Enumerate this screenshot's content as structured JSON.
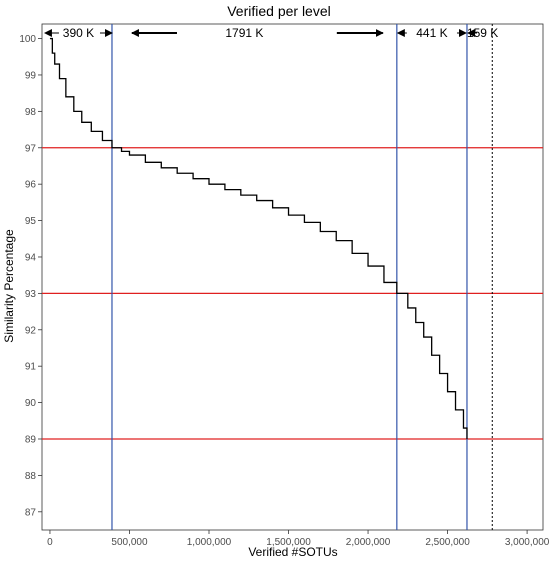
{
  "chart_data": {
    "type": "line",
    "title": "Verified per level",
    "xlabel": "Verified #SOTUs",
    "ylabel": "Similarity Percentage",
    "xlim": [
      -50000,
      3100000
    ],
    "ylim": [
      86.5,
      100.4
    ],
    "x_ticks": [
      0,
      500000,
      1000000,
      1500000,
      2000000,
      2500000,
      3000000
    ],
    "x_tick_labels": [
      "0",
      "500,000",
      "1,000,000",
      "1,500,000",
      "2,000,000",
      "2,500,000",
      "3,000,000"
    ],
    "y_ticks": [
      87,
      88,
      89,
      90,
      91,
      92,
      93,
      94,
      95,
      96,
      97,
      98,
      99,
      100
    ],
    "y_tick_labels": [
      "87",
      "88",
      "89",
      "90",
      "91",
      "92",
      "93",
      "94",
      "95",
      "96",
      "97",
      "98",
      "99",
      "100"
    ],
    "grid": false,
    "series": [
      {
        "step": true,
        "color": "#000000",
        "x": [
          0,
          15000,
          30000,
          60000,
          100000,
          150000,
          200000,
          260000,
          330000,
          390000,
          450000,
          500000,
          600000,
          700000,
          800000,
          900000,
          1000000,
          1100000,
          1200000,
          1300000,
          1400000,
          1500000,
          1600000,
          1700000,
          1800000,
          1900000,
          2000000,
          2100000,
          2181000,
          2250000,
          2300000,
          2350000,
          2400000,
          2450000,
          2500000,
          2550000,
          2600000,
          2622000
        ],
        "y": [
          100.0,
          99.6,
          99.3,
          98.9,
          98.4,
          98.0,
          97.7,
          97.45,
          97.2,
          97.0,
          96.9,
          96.8,
          96.6,
          96.45,
          96.3,
          96.15,
          96.0,
          95.85,
          95.7,
          95.55,
          95.35,
          95.15,
          94.95,
          94.7,
          94.45,
          94.1,
          93.75,
          93.3,
          93.0,
          92.6,
          92.2,
          91.8,
          91.3,
          90.8,
          90.3,
          89.8,
          89.3,
          89.0
        ]
      }
    ],
    "hlines": [
      {
        "y": 97,
        "color": "#e02020"
      },
      {
        "y": 93,
        "color": "#e02020"
      },
      {
        "y": 89,
        "color": "#e02020"
      }
    ],
    "vlines": [
      {
        "x": 390000,
        "color": "#3355aa",
        "style": "solid"
      },
      {
        "x": 2181000,
        "color": "#3355aa",
        "style": "solid"
      },
      {
        "x": 2622000,
        "color": "#3355aa",
        "style": "solid"
      },
      {
        "x": 2781000,
        "color": "#000000",
        "style": "dotted"
      }
    ],
    "annotations": [
      {
        "label": "390 K",
        "from_x": 0,
        "to_x": 390000
      },
      {
        "label": "1791 K",
        "from_x": 390000,
        "to_x": 2181000
      },
      {
        "label": "441 K",
        "from_x": 2181000,
        "to_x": 2622000
      },
      {
        "label": "159 K",
        "from_x": 2622000,
        "to_x": 2781000
      }
    ]
  }
}
